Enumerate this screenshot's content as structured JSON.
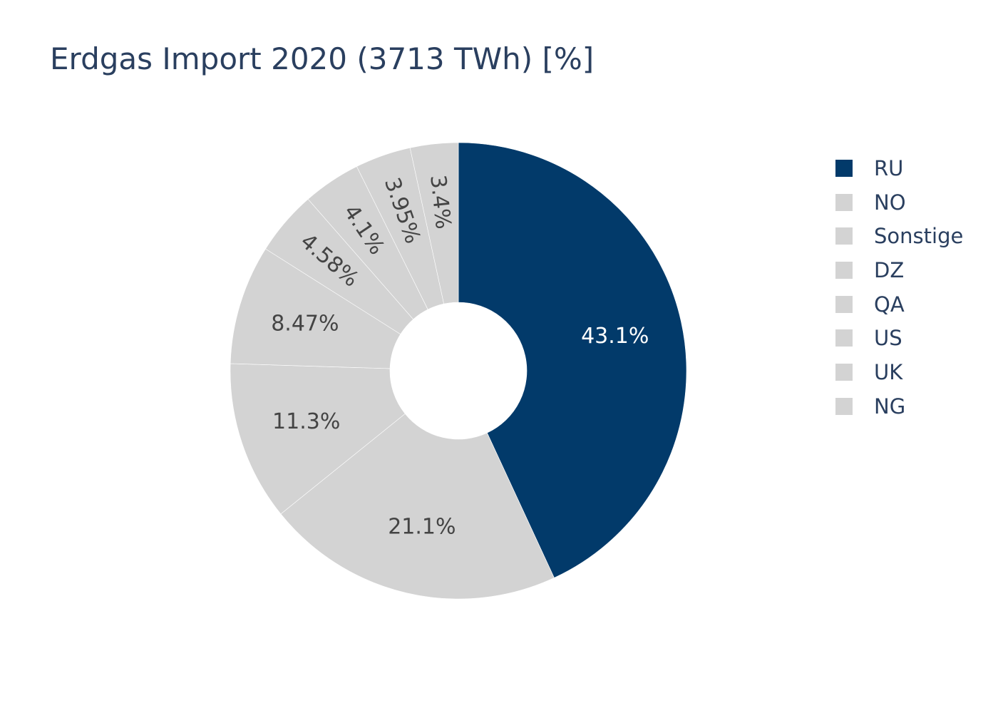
{
  "chart_data": {
    "type": "pie",
    "title": "Erdgas Import 2020 (3713 TWh) [%]",
    "hole": true,
    "categories": [
      "RU",
      "NO",
      "Sonstige",
      "DZ",
      "QA",
      "US",
      "UK",
      "NG"
    ],
    "values": [
      43.1,
      21.1,
      11.3,
      8.47,
      4.58,
      4.1,
      3.95,
      3.4
    ],
    "value_labels": [
      "43.1%",
      "21.1%",
      "11.3%",
      "8.47%",
      "4.58%",
      "4.1%",
      "3.95%",
      "3.4%"
    ],
    "colors": [
      "#023a6a",
      "#d3d3d3",
      "#d3d3d3",
      "#d3d3d3",
      "#d3d3d3",
      "#d3d3d3",
      "#d3d3d3",
      "#d3d3d3"
    ],
    "label_colors": [
      "#ffffff",
      "#444444",
      "#444444",
      "#444444",
      "#444444",
      "#444444",
      "#444444",
      "#444444"
    ],
    "rotated_labels": [
      false,
      false,
      false,
      false,
      true,
      true,
      true,
      true
    ],
    "legend_position": "right",
    "start_angle": "top",
    "direction": "clockwise"
  }
}
